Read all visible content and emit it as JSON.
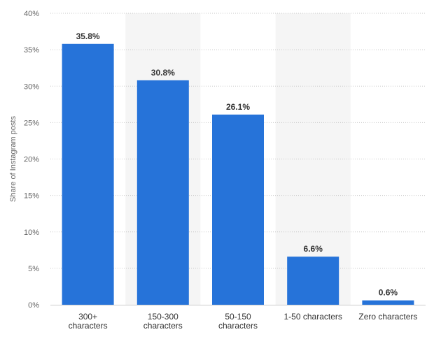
{
  "chart_data": {
    "type": "bar",
    "categories": [
      [
        "300+",
        "characters"
      ],
      [
        "150-300",
        "characters"
      ],
      [
        "50-150",
        "characters"
      ],
      [
        "1-50 characters"
      ],
      [
        "Zero characters"
      ]
    ],
    "values": [
      35.8,
      30.8,
      26.1,
      6.6,
      0.6
    ],
    "value_labels": [
      "35.8%",
      "30.8%",
      "26.1%",
      "6.6%",
      "0.6%"
    ],
    "title": "",
    "xlabel": "",
    "ylabel": "Share of Instagram posts",
    "ylim": [
      0,
      40
    ],
    "yticks": [
      0,
      5,
      10,
      15,
      20,
      25,
      30,
      35,
      40
    ],
    "ytick_labels": [
      "0%",
      "5%",
      "10%",
      "15%",
      "20%",
      "25%",
      "30%",
      "35%",
      "40%"
    ],
    "grid": true,
    "legend": "none",
    "colors": {
      "bar": "#2673d9",
      "band": "#f5f5f5",
      "grid": "#c7c7c7",
      "axis": "#cccccc"
    }
  }
}
